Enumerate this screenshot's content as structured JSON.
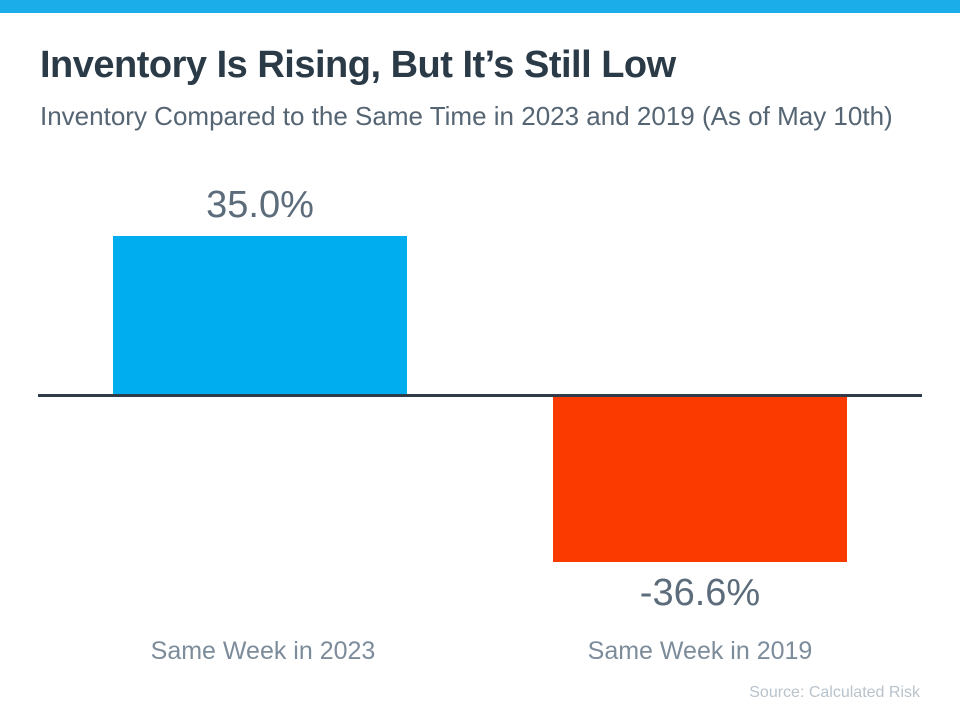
{
  "theme": {
    "accent_strip": "#1BADEA",
    "positive_bar": "#00AEEF",
    "negative_bar": "#FB3A00",
    "title_color": "#2B3A47",
    "subtitle_color": "#556573",
    "value_label_color": "#5C6C7B",
    "category_label_color": "#7D8C9B",
    "source_color": "#B8C3CC",
    "axis_line_color": "#303C48"
  },
  "chart_data": {
    "type": "bar",
    "title": "Inventory Is Rising, But It’s Still Low",
    "subtitle": "Inventory Compared to the Same Time in 2023 and 2019 (As of May 10th)",
    "categories": [
      "Same Week in 2023",
      "Same Week in 2019"
    ],
    "values": [
      35.0,
      -36.6
    ],
    "value_labels": [
      "35.0%",
      "-36.6%"
    ],
    "bar_colors": [
      "#00AEEF",
      "#FB3A00"
    ],
    "unit": "%",
    "baseline": 0,
    "ylim": [
      -40,
      40
    ],
    "grid": false,
    "legend": false,
    "source": "Source: Calculated Risk"
  }
}
